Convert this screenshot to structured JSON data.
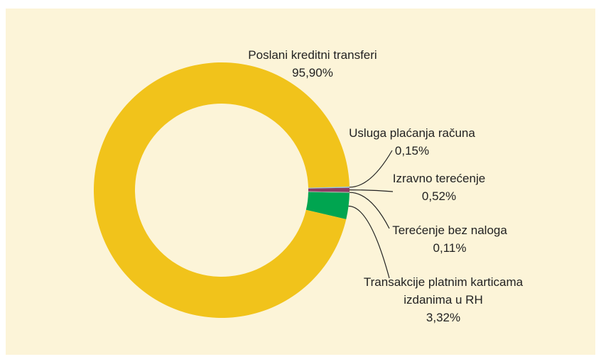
{
  "chart_data": {
    "type": "donut",
    "categories": [
      "Usluga plaćanja računa",
      "Izravno terećenje",
      "Terećenje bez naloga",
      "Transakcije platnim karticama izdanima u RH",
      "Poslani kreditni transferi"
    ],
    "values": [
      0.15,
      0.52,
      0.11,
      3.32,
      95.9
    ],
    "value_labels": [
      "0,15%",
      "0,52%",
      "0,11%",
      "3,32%",
      "95,90%"
    ],
    "colors": [
      "#8ec6e6",
      "#8c3b63",
      "#a3a3a3",
      "#00a550",
      "#f1c31b"
    ]
  }
}
